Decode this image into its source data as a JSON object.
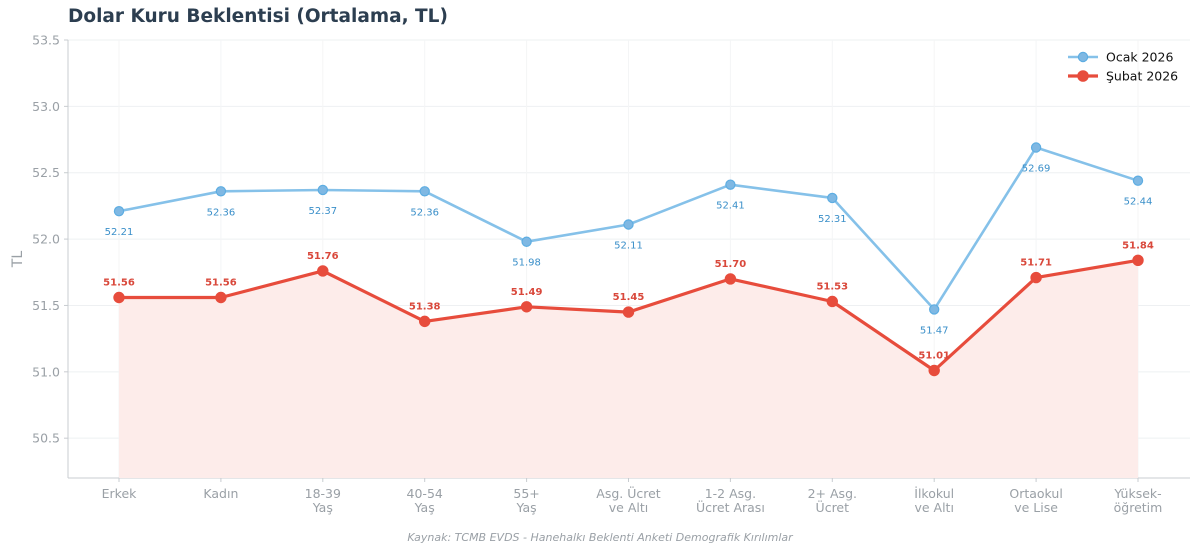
{
  "chart_data": {
    "type": "line",
    "title": "Dolar Kuru Beklentisi (Ortalama, TL)",
    "ylabel": "TL",
    "xlabel": "",
    "ylim": [
      50.2,
      53.5
    ],
    "yticks": [
      50.5,
      51.0,
      51.5,
      52.0,
      52.5,
      53.0,
      53.5
    ],
    "grid": true,
    "legend_position": "top-right",
    "categories": [
      [
        "Erkek"
      ],
      [
        "Kadın"
      ],
      [
        "18-39",
        "Yaş"
      ],
      [
        "40-54",
        "Yaş"
      ],
      [
        "55+",
        "Yaş"
      ],
      [
        "Asg. Ücret",
        "ve Altı"
      ],
      [
        "1-2 Asg.",
        "Ücret Arası"
      ],
      [
        "2+ Asg.",
        "Ücret"
      ],
      [
        "İlkokul",
        "ve Altı"
      ],
      [
        "Ortaokul",
        "ve Lise"
      ],
      [
        "Yüksek-",
        "öğretim"
      ]
    ],
    "series": [
      {
        "name": "Ocak 2026",
        "color": "#85c1e9",
        "label_color": "#3a8fc9",
        "values": [
          52.21,
          52.36,
          52.37,
          52.36,
          51.98,
          52.11,
          52.41,
          52.31,
          51.47,
          52.69,
          52.44
        ],
        "labels": [
          "52.21",
          "52.36",
          "52.37",
          "52.36",
          "51.98",
          "52.11",
          "52.41",
          "52.31",
          "51.47",
          "52.69",
          "52.44"
        ],
        "fill": false
      },
      {
        "name": "Şubat 2026",
        "color": "#e74c3c",
        "label_color": "#d9483b",
        "values": [
          51.56,
          51.56,
          51.76,
          51.38,
          51.49,
          51.45,
          51.7,
          51.53,
          51.01,
          51.71,
          51.84
        ],
        "labels": [
          "51.56",
          "51.56",
          "51.76",
          "51.38",
          "51.49",
          "51.45",
          "51.70",
          "51.53",
          "51.01",
          "51.71",
          "51.84"
        ],
        "fill": true
      }
    ],
    "source": "Kaynak: TCMB EVDS - Hanehalkı Beklenti Anketi Demografik Kırılımlar"
  }
}
